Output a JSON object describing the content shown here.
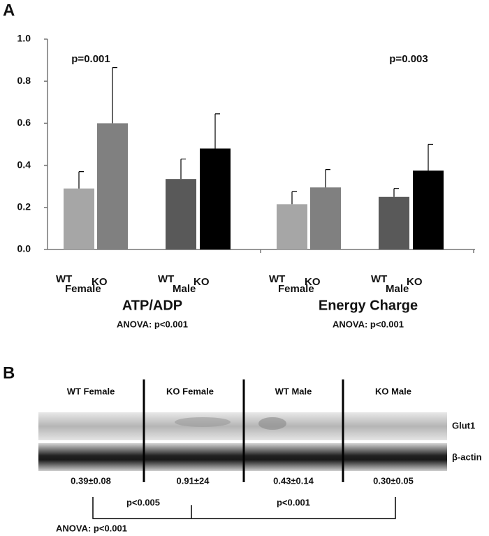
{
  "panel_a": {
    "label": "A"
  },
  "chart_data": {
    "type": "bar",
    "categories": [
      "ATP/ADP",
      "Energy Charge"
    ],
    "subgroups": [
      {
        "sex": "Female",
        "genotypes": [
          "WT",
          "KO"
        ]
      },
      {
        "sex": "Male",
        "genotypes": [
          "WT",
          "KO"
        ]
      }
    ],
    "series": [
      {
        "color": "#a6a6a6",
        "values": [
          0.29,
          0.215
        ],
        "errors": [
          0.08,
          0.06
        ]
      },
      {
        "color": "#808080",
        "values": [
          0.6,
          0.295
        ],
        "errors": [
          0.265,
          0.085
        ]
      },
      {
        "color": "#595959",
        "values": [
          0.335,
          0.25
        ],
        "errors": [
          0.095,
          0.04
        ]
      },
      {
        "color": "#000000",
        "values": [
          0.48,
          0.375
        ],
        "errors": [
          0.165,
          0.125
        ]
      }
    ],
    "p_values": [
      "p=0.001",
      "p=0.003"
    ],
    "anova": [
      "ANOVA: p<0.001",
      "ANOVA: p<0.001"
    ],
    "ylim": [
      0,
      1
    ],
    "yticks": [
      {
        "value": 0,
        "label": "0.0"
      },
      0.2,
      0.4,
      0.6,
      0.8,
      {
        "value": 1,
        "label": "1.0"
      }
    ],
    "grid": false
  },
  "panel_b": {
    "label": "B",
    "lanes": [
      "WT Female",
      "KO Female",
      "WT Male",
      "KO Male"
    ],
    "bands": [
      "Glut1",
      "β-actin"
    ],
    "quantification": [
      "0.39±0.08",
      "0.91±24",
      "0.43±0.14",
      "0.30±0.05"
    ],
    "comparisons": [
      "p<0.005",
      "p<0.001"
    ],
    "anova": "ANOVA: p<0.001"
  }
}
